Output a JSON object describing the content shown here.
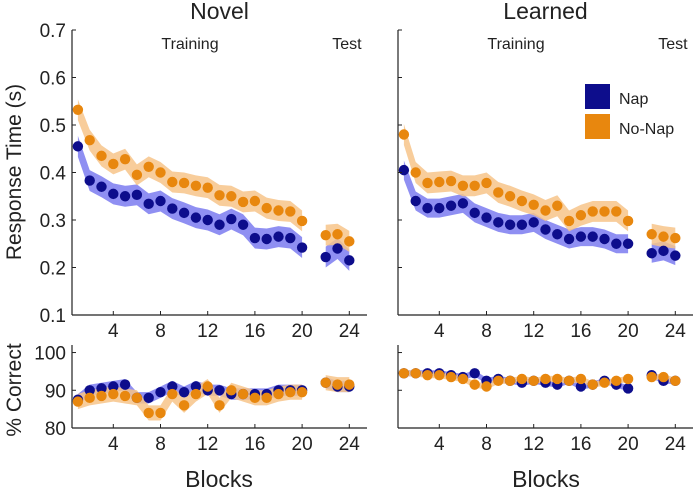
{
  "colors": {
    "nap": "#0d0d8c",
    "nap_band": "#7b7bf0",
    "nonap": "#e8870e",
    "nonap_band": "#f7c48a",
    "axis": "#222222"
  },
  "figure": {
    "ylabel_top": "Response Time (s)",
    "ylabel_bottom": "% Correct",
    "xlabel": "Blocks",
    "legend": [
      {
        "label": "Nap",
        "color_key": "nap"
      },
      {
        "label": "No-Nap",
        "color_key": "nonap"
      }
    ],
    "yticks_top": [
      "0.1",
      "0.2",
      "0.3",
      "0.4",
      "0.5",
      "0.6",
      "0.7"
    ],
    "yticks_bottom": [
      "80",
      "90",
      "100"
    ],
    "xticks": [
      "4",
      "8",
      "12",
      "16",
      "20",
      "24"
    ]
  },
  "chart_data": [
    {
      "type": "scatter",
      "panel": "Novel - Response Time",
      "title": "Novel",
      "phase_labels": [
        "Training",
        "Test"
      ],
      "ylabel": "Response Time (s)",
      "ylim": [
        0.1,
        0.7
      ],
      "xlim": [
        0.5,
        25.5
      ],
      "xticks": [
        4,
        8,
        12,
        16,
        20,
        24
      ],
      "legend_position": "top-right",
      "series": [
        {
          "name": "Nap",
          "x": [
            1,
            2,
            3,
            4,
            5,
            6,
            7,
            8,
            9,
            10,
            11,
            12,
            13,
            14,
            15,
            16,
            17,
            18,
            19,
            20,
            22,
            23,
            24
          ],
          "values": [
            0.455,
            0.383,
            0.37,
            0.355,
            0.35,
            0.353,
            0.334,
            0.34,
            0.324,
            0.315,
            0.305,
            0.3,
            0.29,
            0.302,
            0.29,
            0.262,
            0.26,
            0.265,
            0.262,
            0.242,
            0.222,
            0.24,
            0.215
          ],
          "band": 0.022
        },
        {
          "name": "No-Nap",
          "x": [
            1,
            2,
            3,
            4,
            5,
            6,
            7,
            8,
            9,
            10,
            11,
            12,
            13,
            14,
            15,
            16,
            17,
            18,
            19,
            20,
            22,
            23,
            24
          ],
          "values": [
            0.532,
            0.468,
            0.435,
            0.418,
            0.428,
            0.395,
            0.412,
            0.4,
            0.38,
            0.378,
            0.372,
            0.368,
            0.352,
            0.35,
            0.338,
            0.34,
            0.325,
            0.32,
            0.318,
            0.298,
            0.268,
            0.27,
            0.255
          ],
          "band": 0.022
        }
      ]
    },
    {
      "type": "scatter",
      "panel": "Learned - Response Time",
      "title": "Learned",
      "phase_labels": [
        "Training",
        "Test"
      ],
      "ylabel": "Response Time (s)",
      "ylim": [
        0.1,
        0.7
      ],
      "xlim": [
        0.5,
        25.5
      ],
      "xticks": [
        4,
        8,
        12,
        16,
        20,
        24
      ],
      "series": [
        {
          "name": "Nap",
          "x": [
            1,
            2,
            3,
            4,
            5,
            6,
            7,
            8,
            9,
            10,
            11,
            12,
            13,
            14,
            15,
            16,
            17,
            18,
            19,
            20,
            22,
            23,
            24
          ],
          "values": [
            0.405,
            0.34,
            0.325,
            0.325,
            0.33,
            0.335,
            0.315,
            0.305,
            0.295,
            0.29,
            0.29,
            0.295,
            0.28,
            0.27,
            0.26,
            0.265,
            0.265,
            0.26,
            0.25,
            0.25,
            0.23,
            0.235,
            0.225
          ],
          "band": 0.02
        },
        {
          "name": "No-Nap",
          "x": [
            1,
            2,
            3,
            4,
            5,
            6,
            7,
            8,
            9,
            10,
            11,
            12,
            13,
            14,
            15,
            16,
            17,
            18,
            19,
            20,
            22,
            23,
            24
          ],
          "values": [
            0.48,
            0.4,
            0.378,
            0.38,
            0.382,
            0.372,
            0.372,
            0.378,
            0.358,
            0.35,
            0.34,
            0.332,
            0.32,
            0.33,
            0.298,
            0.31,
            0.318,
            0.318,
            0.318,
            0.298,
            0.27,
            0.265,
            0.262
          ],
          "band": 0.022
        }
      ]
    },
    {
      "type": "scatter",
      "panel": "Novel - % Correct",
      "ylabel": "% Correct",
      "xlabel": "Blocks",
      "ylim": [
        80,
        102
      ],
      "xlim": [
        0.5,
        25.5
      ],
      "xticks": [
        4,
        8,
        12,
        16,
        20,
        24
      ],
      "series": [
        {
          "name": "Nap",
          "x": [
            1,
            2,
            3,
            4,
            5,
            6,
            7,
            8,
            9,
            10,
            11,
            12,
            13,
            14,
            15,
            16,
            17,
            18,
            19,
            20,
            22,
            23,
            24
          ],
          "values": [
            87.5,
            90.0,
            90.5,
            91.0,
            91.5,
            88.0,
            88.0,
            89.5,
            91.0,
            89.5,
            91.0,
            90.0,
            90.0,
            89.0,
            89.0,
            89.0,
            89.0,
            90.0,
            90.0,
            90.0,
            92.0,
            91.0,
            91.0
          ],
          "band": 1.5
        },
        {
          "name": "No-Nap",
          "x": [
            1,
            2,
            3,
            4,
            5,
            6,
            7,
            8,
            9,
            10,
            11,
            12,
            13,
            14,
            15,
            16,
            17,
            18,
            19,
            20,
            22,
            23,
            24
          ],
          "values": [
            87.0,
            88.0,
            88.5,
            89.0,
            88.5,
            88.0,
            84.0,
            84.0,
            89.0,
            86.0,
            89.0,
            91.0,
            86.0,
            90.0,
            89.0,
            88.0,
            88.0,
            89.0,
            89.5,
            89.5,
            92.0,
            91.5,
            91.5
          ],
          "band": 2.0
        }
      ]
    },
    {
      "type": "scatter",
      "panel": "Learned - % Correct",
      "xlabel": "Blocks",
      "ylim": [
        80,
        102
      ],
      "xlim": [
        0.5,
        25.5
      ],
      "xticks": [
        4,
        8,
        12,
        16,
        20,
        24
      ],
      "series": [
        {
          "name": "Nap",
          "x": [
            1,
            2,
            3,
            4,
            5,
            6,
            7,
            8,
            9,
            10,
            11,
            12,
            13,
            14,
            15,
            16,
            17,
            18,
            19,
            20,
            22,
            23,
            24
          ],
          "values": [
            94.5,
            94.5,
            94.5,
            94.5,
            94.0,
            93.5,
            94.5,
            92.5,
            93.0,
            92.5,
            92.0,
            92.5,
            92.0,
            91.5,
            92.5,
            91.0,
            91.5,
            92.5,
            91.5,
            90.5,
            94.0,
            92.5,
            92.5
          ],
          "band": 0.8
        },
        {
          "name": "No-Nap",
          "x": [
            1,
            2,
            3,
            4,
            5,
            6,
            7,
            8,
            9,
            10,
            11,
            12,
            13,
            14,
            15,
            16,
            17,
            18,
            19,
            20,
            22,
            23,
            24
          ],
          "values": [
            94.5,
            94.5,
            94.0,
            94.0,
            93.5,
            93.0,
            91.5,
            91.0,
            92.5,
            92.5,
            93.0,
            92.5,
            93.0,
            93.0,
            92.5,
            93.0,
            91.5,
            92.0,
            92.5,
            93.0,
            93.5,
            93.5,
            92.5
          ],
          "band": 0.8
        }
      ]
    }
  ]
}
